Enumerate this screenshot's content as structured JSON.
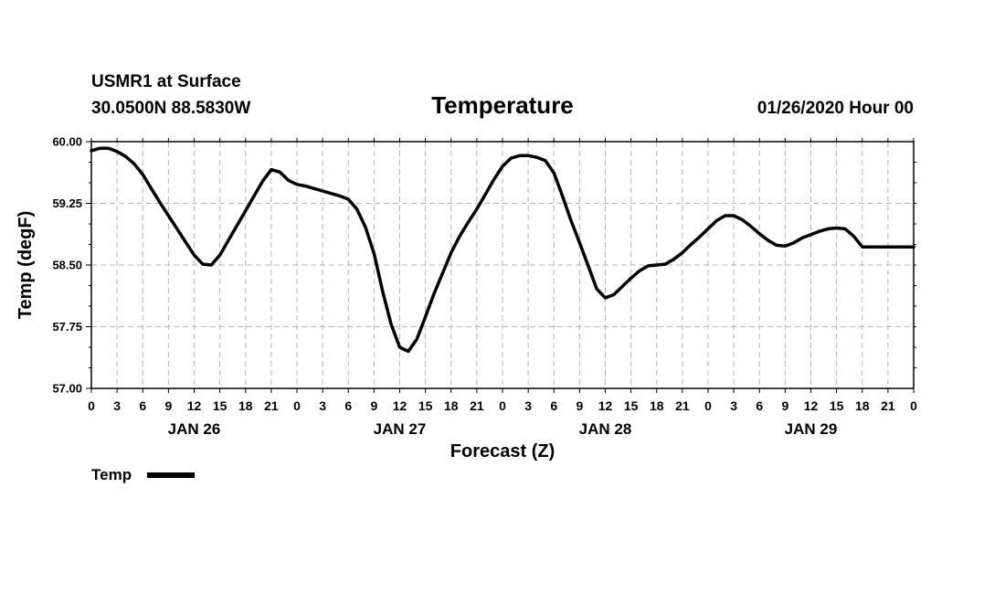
{
  "chart_data": {
    "type": "line",
    "station": "USMR1 at Surface",
    "location": "30.0500N 88.5830W",
    "title": "Temperature",
    "run": "01/26/2020 Hour 00",
    "ylabel": "Temp (degF)",
    "xlabel": "Forecast (Z)",
    "ylim": [
      57.0,
      60.0
    ],
    "yticks": [
      "57.00",
      "57.75",
      "58.50",
      "59.25",
      "60.00"
    ],
    "xlim_hours": [
      0,
      96
    ],
    "xtick_labels": [
      "0",
      "3",
      "6",
      "9",
      "12",
      "15",
      "18",
      "21",
      "0",
      "3",
      "6",
      "9",
      "12",
      "15",
      "18",
      "21",
      "0",
      "3",
      "6",
      "9",
      "12",
      "15",
      "18",
      "21",
      "0",
      "3",
      "6",
      "9",
      "12",
      "15",
      "18",
      "21",
      "0"
    ],
    "days": [
      {
        "label": "JAN 26",
        "center_hour": 12
      },
      {
        "label": "JAN 27",
        "center_hour": 36
      },
      {
        "label": "JAN 28",
        "center_hour": 60
      },
      {
        "label": "JAN 29",
        "center_hour": 84
      }
    ],
    "grid": true,
    "legend_position": "bottom-left",
    "series": [
      {
        "name": "Temp",
        "color": "#000000",
        "x": [
          0,
          1,
          2,
          3,
          4,
          5,
          6,
          7,
          8,
          9,
          10,
          11,
          12,
          13,
          14,
          15,
          16,
          17,
          18,
          19,
          20,
          21,
          22,
          23,
          24,
          25,
          26,
          27,
          28,
          29,
          30,
          31,
          32,
          33,
          34,
          35,
          36,
          37,
          38,
          39,
          40,
          41,
          42,
          43,
          44,
          45,
          46,
          47,
          48,
          49,
          50,
          51,
          52,
          53,
          54,
          55,
          56,
          57,
          58,
          59,
          60,
          61,
          62,
          63,
          64,
          65,
          66,
          67,
          68,
          69,
          70,
          71,
          72,
          73,
          74,
          75,
          76,
          77,
          78,
          79,
          80,
          81,
          82,
          83,
          84,
          85,
          86,
          87,
          88,
          89,
          90,
          91,
          92,
          93,
          94,
          95,
          96
        ],
        "values": [
          59.89,
          59.92,
          59.92,
          59.88,
          59.82,
          59.73,
          59.6,
          59.43,
          59.26,
          59.1,
          58.94,
          58.78,
          58.62,
          58.51,
          58.5,
          58.62,
          58.8,
          58.98,
          59.16,
          59.34,
          59.52,
          59.66,
          59.63,
          59.53,
          59.48,
          59.46,
          59.43,
          59.4,
          59.37,
          59.34,
          59.3,
          59.18,
          58.96,
          58.64,
          58.18,
          57.78,
          57.5,
          57.45,
          57.6,
          57.87,
          58.15,
          58.4,
          58.65,
          58.85,
          59.02,
          59.18,
          59.36,
          59.54,
          59.7,
          59.8,
          59.83,
          59.83,
          59.81,
          59.77,
          59.62,
          59.34,
          59.04,
          58.77,
          58.49,
          58.21,
          58.1,
          58.14,
          58.24,
          58.34,
          58.43,
          58.49,
          58.5,
          58.51,
          58.57,
          58.65,
          58.75,
          58.84,
          58.94,
          59.04,
          59.1,
          59.1,
          59.05,
          58.97,
          58.88,
          58.8,
          58.74,
          58.73,
          58.77,
          58.83,
          58.87,
          58.91,
          58.94,
          58.95,
          58.94,
          58.85,
          58.72,
          58.72,
          58.72,
          58.72,
          58.72,
          58.72,
          58.72
        ]
      }
    ]
  }
}
